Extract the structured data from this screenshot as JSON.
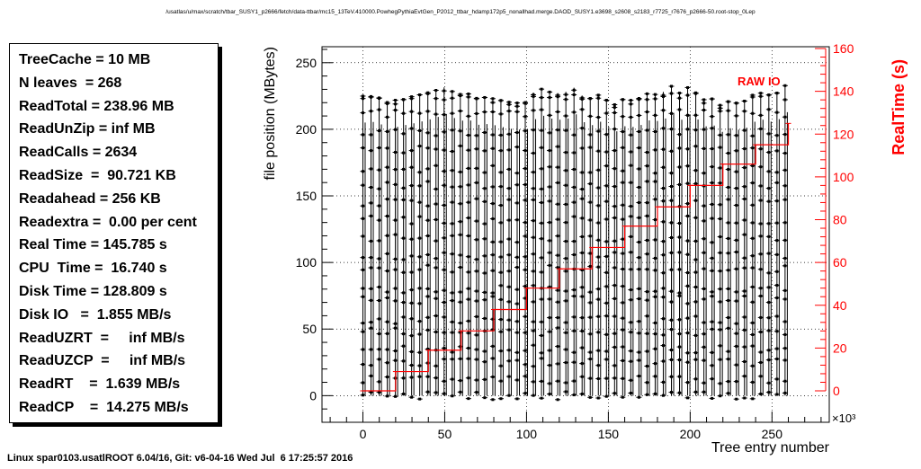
{
  "header": {
    "path": "/usatlas/u/max/scratch/tbar_SUSY1_p2666/fetch/data-ttbar/mc15_13TeV.410000.PowhegPythiaEvtGen_P2012_ttbar_hdamp172p5_nonallhad.merge.DAOD_SUSY1.e3698_s2608_s2183_r7725_r7676_p2666-50.root-stop_0Lep"
  },
  "stats": [
    "TreeCache = 10 MB",
    "N leaves  = 268",
    "ReadTotal = 238.96 MB",
    "ReadUnZip = inf MB",
    "ReadCalls = 2634",
    "ReadSize  =  90.721 KB",
    "Readahead = 256 KB",
    "Readextra =  0.00 per cent",
    "Real Time = 145.785 s",
    "CPU  Time =  16.740 s",
    "Disk Time = 128.809 s",
    "Disk IO   =  1.855 MB/s",
    "ReadUZRT  =     inf MB/s",
    "ReadUZCP  =     inf MB/s",
    "ReadRT    =  1.639 MB/s",
    "ReadCP    =  14.275 MB/s"
  ],
  "footer": "Linux spar0103.usatlROOT 6.04/16, Git: v6-04-16 Wed Jul  6 17:25:57 2016",
  "colors": {
    "data": "#000000",
    "raw": "#ff0000",
    "grid": "#000000"
  },
  "chart_data": {
    "type": "scatter",
    "xlabel": "Tree entry number",
    "ylabel": "file position (MBytes)",
    "y2label": "RealTime (s)",
    "x_multiplier": "×10³",
    "xlim": [
      -25,
      285
    ],
    "ylim": [
      -20,
      262
    ],
    "y2lim": [
      0,
      160
    ],
    "xticks": [
      0,
      50,
      100,
      150,
      200,
      250
    ],
    "yticks": [
      0,
      50,
      100,
      150,
      200,
      250
    ],
    "y2ticks": [
      0,
      20,
      40,
      60,
      80,
      100,
      120,
      140,
      160
    ],
    "grid": true,
    "annotation": "RAW IO",
    "series": [
      {
        "name": "",
        "kind": "file-position vertical read bands",
        "band_count": 53,
        "x_start": 0,
        "x_end": 258,
        "y_min": 0,
        "y_max": 233,
        "dense_levels": [
          0,
          12,
          25,
          35,
          48,
          57,
          72,
          80,
          95,
          105,
          118,
          132,
          145,
          158,
          170,
          185,
          198,
          212,
          225
        ]
      },
      {
        "name": "RAW IO",
        "kind": "RealTime step line (right axis)",
        "x": [
          0,
          20,
          40,
          60,
          80,
          100,
          120,
          140,
          160,
          180,
          200,
          220,
          240,
          260
        ],
        "y": [
          0,
          9,
          19,
          28,
          38,
          48,
          57,
          67,
          77,
          86,
          96,
          106,
          115,
          125
        ]
      }
    ]
  }
}
